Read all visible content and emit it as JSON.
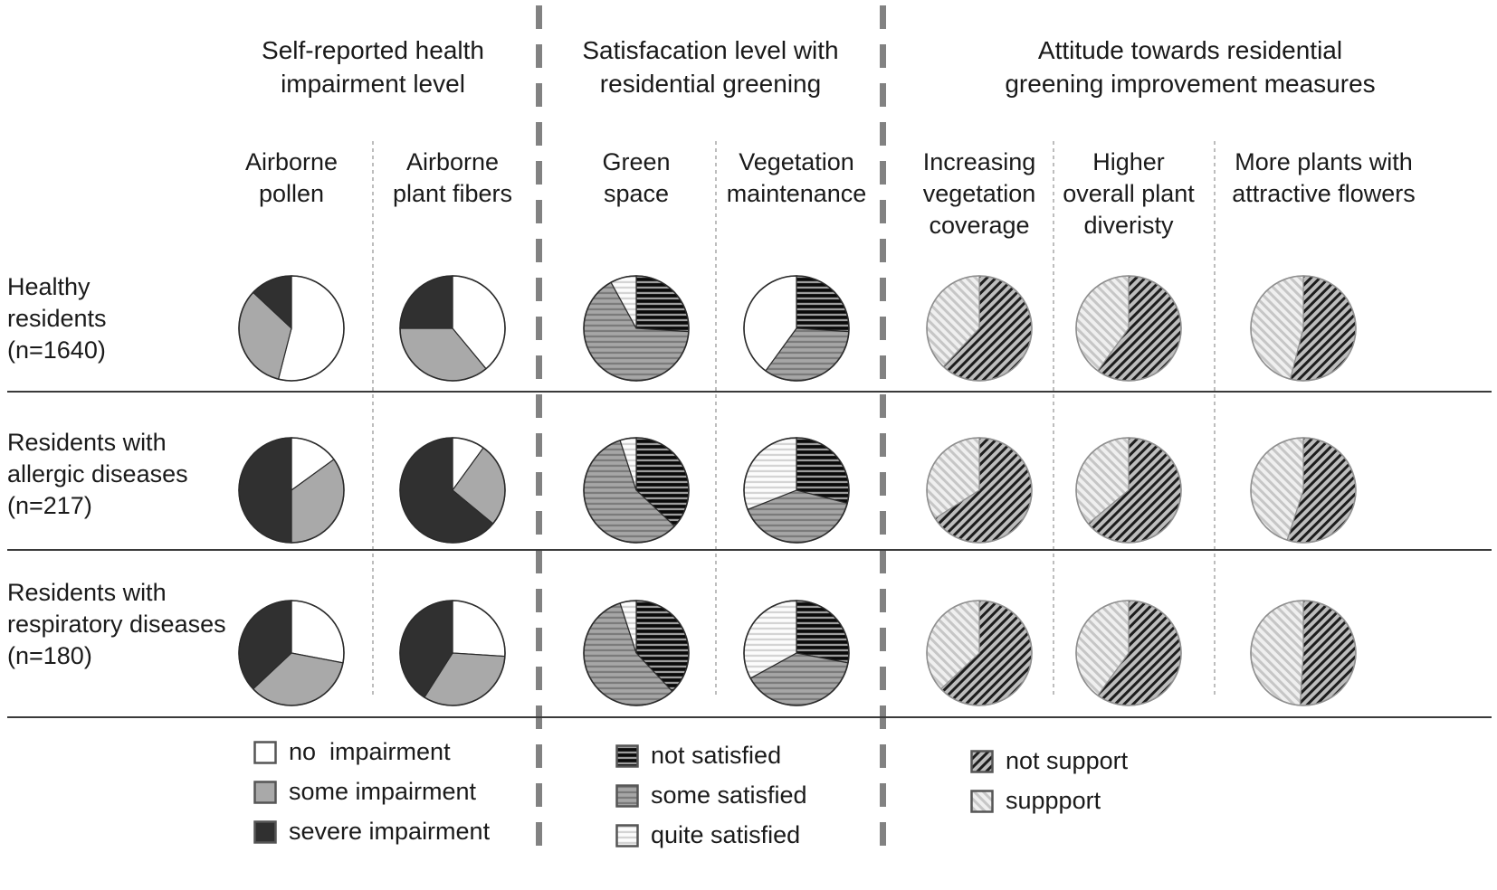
{
  "sections": [
    {
      "id": "impairment",
      "title": "Self-reported health\nimpairment level"
    },
    {
      "id": "satisfaction",
      "title": "Satisfacation level with\nresidential greening"
    },
    {
      "id": "attitude",
      "title": "Attitude towards residential\ngreening improvement measures"
    }
  ],
  "columns": [
    {
      "id": "airborne-pollen",
      "label": "Airborne\npollen",
      "section": "impairment"
    },
    {
      "id": "airborne-plant-fibers",
      "label": "Airborne\nplant fibers",
      "section": "impairment"
    },
    {
      "id": "green-space",
      "label": "Green\nspace",
      "section": "satisfaction"
    },
    {
      "id": "vegetation-maintenance",
      "label": "Vegetation\nmaintenance",
      "section": "satisfaction"
    },
    {
      "id": "increasing-vegetation-coverage",
      "label": "Increasing\nvegetation\ncoverage",
      "section": "attitude"
    },
    {
      "id": "higher-overall-plant-diversity",
      "label": "Higher\noverall plant\ndiveristy",
      "section": "attitude"
    },
    {
      "id": "more-plants-attractive-flowers",
      "label": "More plants with\nattractive flowers",
      "section": "attitude"
    }
  ],
  "rows": [
    {
      "id": "healthy",
      "label": "Healthy\nresidents\n(n=1640)"
    },
    {
      "id": "allergic",
      "label": "Residents with\nallergic diseases\n(n=217)"
    },
    {
      "id": "respiratory",
      "label": "Residents with\nrespiratory diseases\n(n=180)"
    }
  ],
  "palettes": {
    "impairment": {
      "stroke": "#2b2b2b",
      "slices": [
        {
          "key": "no impairment",
          "fill": "#ffffff"
        },
        {
          "key": "some impairment",
          "fill": "#a9a9a9"
        },
        {
          "key": "severe impairment",
          "fill": "#303030"
        }
      ]
    },
    "satisfaction": {
      "stroke": "#2b2b2b",
      "slices": [
        {
          "key": "not satisfied",
          "hatch": "h",
          "bg": "#0a0a0a",
          "line": "#9d9d9d"
        },
        {
          "key": "some satisfied",
          "hatch": "h",
          "bg": "#a6a6a6",
          "line": "#7b7b7b"
        },
        {
          "key": "quite satisfied",
          "hatch": "h",
          "bg": "#fcfcfc",
          "line": "#d4d4d4"
        }
      ]
    },
    "attitude": {
      "stroke": "#8f8f8f",
      "slices": [
        {
          "key": "not support",
          "hatch": "d1",
          "bg": "#bdbdbd",
          "line": "#1d1d1d"
        },
        {
          "key": "support",
          "hatch": "d2",
          "bg": "#efefef",
          "line": "#c6c6c6"
        }
      ]
    }
  },
  "legends": [
    {
      "id": "impairment",
      "items": [
        {
          "label": "no  impairment",
          "palette": "impairment",
          "index": 0
        },
        {
          "label": "some impairment",
          "palette": "impairment",
          "index": 1
        },
        {
          "label": "severe impairment",
          "palette": "impairment",
          "index": 2
        }
      ]
    },
    {
      "id": "satisfaction",
      "items": [
        {
          "label": "not satisfied",
          "palette": "satisfaction",
          "index": 0
        },
        {
          "label": "some satisfied",
          "palette": "satisfaction",
          "index": 1
        },
        {
          "label": "quite satisfied",
          "palette": "satisfaction",
          "index": 2
        }
      ]
    },
    {
      "id": "attitude",
      "items": [
        {
          "label": "not support",
          "palette": "attitude",
          "index": 0
        },
        {
          "label": "suppport",
          "palette": "attitude",
          "index": 1
        }
      ]
    }
  ],
  "chart_data": {
    "type": "pie",
    "note": "21 pie charts in a 3x7 grid; slices listed clockwise from 12 o'clock; values are estimated percentages of each resident group",
    "rows": [
      {
        "row": "Healthy residents (n=1640)",
        "pies": [
          {
            "column": "Airborne pollen",
            "palette": "impairment",
            "slices": [
              {
                "label": "no impairment",
                "pct": 54
              },
              {
                "label": "some impairment",
                "pct": 33
              },
              {
                "label": "severe impairment",
                "pct": 13
              }
            ]
          },
          {
            "column": "Airborne plant fibers",
            "palette": "impairment",
            "slices": [
              {
                "label": "no impairment",
                "pct": 39
              },
              {
                "label": "some impairment",
                "pct": 36
              },
              {
                "label": "severe impairment",
                "pct": 25
              }
            ]
          },
          {
            "column": "Green space",
            "palette": "satisfaction",
            "slices": [
              {
                "label": "not satisfied",
                "pct": 26
              },
              {
                "label": "some satisfied",
                "pct": 66
              },
              {
                "label": "quite satisfied",
                "pct": 8
              }
            ]
          },
          {
            "column": "Vegetation maintenance",
            "palette": "satisfaction",
            "slices": [
              {
                "label": "not satisfied",
                "pct": 26
              },
              {
                "label": "some satisfied",
                "pct": 34
              },
              {
                "label": "quite satisfied",
                "pct": 40,
                "plain_white": true
              }
            ]
          },
          {
            "column": "Increasing vegetation coverage",
            "palette": "attitude",
            "slices": [
              {
                "label": "not support",
                "pct": 62
              },
              {
                "label": "support",
                "pct": 38
              }
            ]
          },
          {
            "column": "Higher overall plant diveristy",
            "palette": "attitude",
            "slices": [
              {
                "label": "not support",
                "pct": 60
              },
              {
                "label": "support",
                "pct": 40
              }
            ]
          },
          {
            "column": "More plants with attractive flowers",
            "palette": "attitude",
            "slices": [
              {
                "label": "not support",
                "pct": 54
              },
              {
                "label": "support",
                "pct": 46
              }
            ]
          }
        ]
      },
      {
        "row": "Residents with allergic diseases (n=217)",
        "pies": [
          {
            "column": "Airborne pollen",
            "palette": "impairment",
            "slices": [
              {
                "label": "no impairment",
                "pct": 15
              },
              {
                "label": "some impairment",
                "pct": 35
              },
              {
                "label": "severe impairment",
                "pct": 50
              }
            ]
          },
          {
            "column": "Airborne plant fibers",
            "palette": "impairment",
            "slices": [
              {
                "label": "no impairment",
                "pct": 10
              },
              {
                "label": "some impairment",
                "pct": 26
              },
              {
                "label": "severe impairment",
                "pct": 64
              }
            ]
          },
          {
            "column": "Green space",
            "palette": "satisfaction",
            "slices": [
              {
                "label": "not satisfied",
                "pct": 37
              },
              {
                "label": "some satisfied",
                "pct": 58
              },
              {
                "label": "quite satisfied",
                "pct": 5
              }
            ]
          },
          {
            "column": "Vegetation maintenance",
            "palette": "satisfaction",
            "slices": [
              {
                "label": "not satisfied",
                "pct": 29
              },
              {
                "label": "some satisfied",
                "pct": 40
              },
              {
                "label": "quite satisfied",
                "pct": 31
              }
            ]
          },
          {
            "column": "Increasing vegetation coverage",
            "palette": "attitude",
            "slices": [
              {
                "label": "not support",
                "pct": 66
              },
              {
                "label": "support",
                "pct": 34
              }
            ]
          },
          {
            "column": "Higher overall plant diveristy",
            "palette": "attitude",
            "slices": [
              {
                "label": "not support",
                "pct": 64
              },
              {
                "label": "support",
                "pct": 36
              }
            ]
          },
          {
            "column": "More plants with attractive flowers",
            "palette": "attitude",
            "slices": [
              {
                "label": "not support",
                "pct": 55
              },
              {
                "label": "support",
                "pct": 45
              }
            ]
          }
        ]
      },
      {
        "row": "Residents with respiratory diseases (n=180)",
        "pies": [
          {
            "column": "Airborne pollen",
            "palette": "impairment",
            "slices": [
              {
                "label": "no impairment",
                "pct": 28
              },
              {
                "label": "some impairment",
                "pct": 35
              },
              {
                "label": "severe impairment",
                "pct": 37
              }
            ]
          },
          {
            "column": "Airborne plant fibers",
            "palette": "impairment",
            "slices": [
              {
                "label": "no impairment",
                "pct": 26
              },
              {
                "label": "some impairment",
                "pct": 33
              },
              {
                "label": "severe impairment",
                "pct": 41
              }
            ]
          },
          {
            "column": "Green space",
            "palette": "satisfaction",
            "slices": [
              {
                "label": "not satisfied",
                "pct": 38
              },
              {
                "label": "some satisfied",
                "pct": 57
              },
              {
                "label": "quite satisfied",
                "pct": 5
              }
            ]
          },
          {
            "column": "Vegetation maintenance",
            "palette": "satisfaction",
            "slices": [
              {
                "label": "not satisfied",
                "pct": 28
              },
              {
                "label": "some satisfied",
                "pct": 39
              },
              {
                "label": "quite satisfied",
                "pct": 33
              }
            ]
          },
          {
            "column": "Increasing vegetation coverage",
            "palette": "attitude",
            "slices": [
              {
                "label": "not support",
                "pct": 63
              },
              {
                "label": "support",
                "pct": 37
              }
            ]
          },
          {
            "column": "Higher overall plant diveristy",
            "palette": "attitude",
            "slices": [
              {
                "label": "not support",
                "pct": 60
              },
              {
                "label": "support",
                "pct": 40
              }
            ]
          },
          {
            "column": "More plants with attractive flowers",
            "palette": "attitude",
            "slices": [
              {
                "label": "not support",
                "pct": 51
              },
              {
                "label": "support",
                "pct": 49
              }
            ]
          }
        ]
      }
    ]
  }
}
